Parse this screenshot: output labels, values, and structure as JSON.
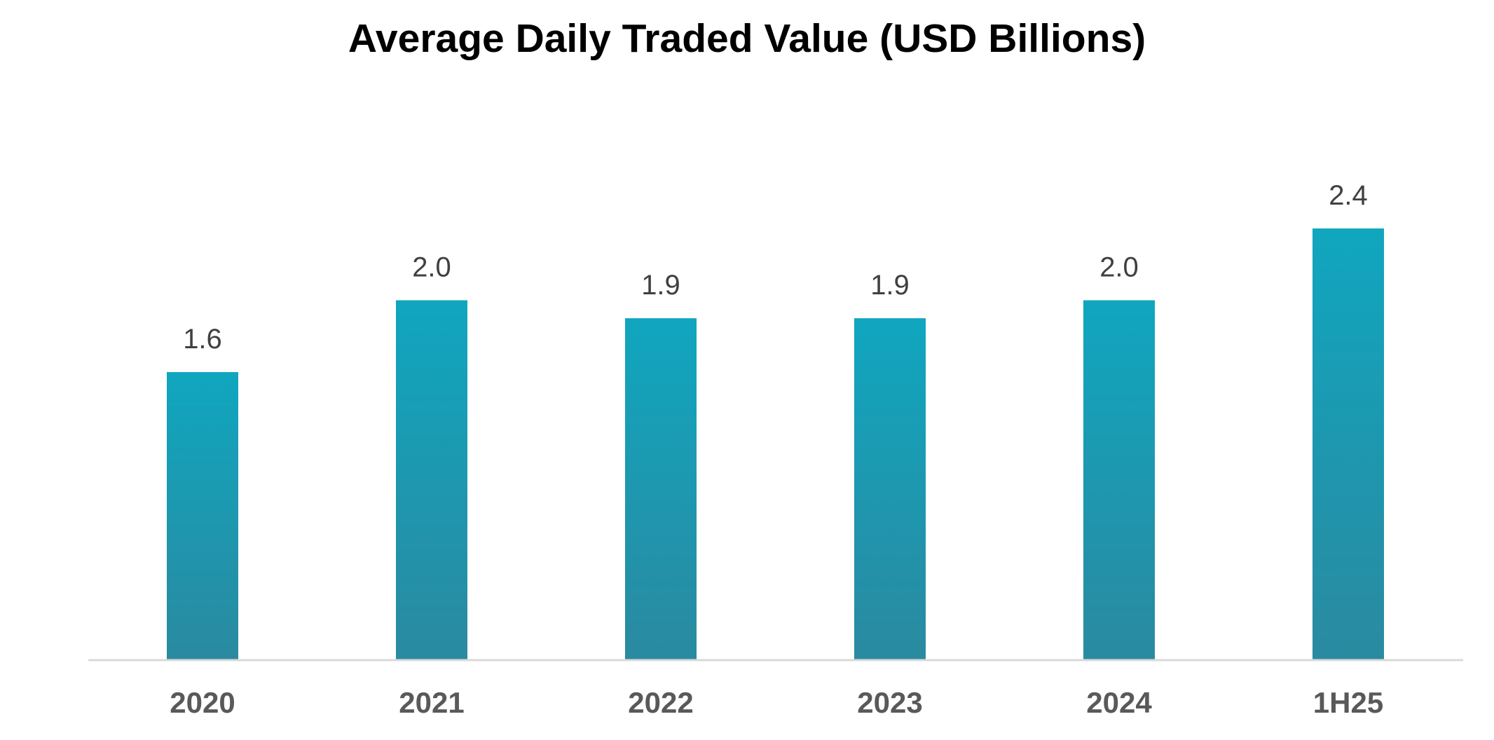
{
  "chart_data": {
    "type": "bar",
    "title": "Average Daily Traded Value (USD Billions)",
    "categories": [
      "2020",
      "2021",
      "2022",
      "2023",
      "2024",
      "1H25"
    ],
    "values": [
      1.6,
      2.0,
      1.9,
      1.9,
      2.0,
      2.4
    ],
    "data_labels": [
      "1.6",
      "2.0",
      "1.9",
      "1.9",
      "2.0",
      "2.4"
    ],
    "xlabel": "",
    "ylabel": "",
    "ylim": [
      0,
      2.4
    ],
    "grid": false,
    "legend": "none",
    "bar_color_top": "#10A6BF",
    "bar_color_bottom": "#2A8AA0",
    "axis_color": "#D9D9D9"
  }
}
